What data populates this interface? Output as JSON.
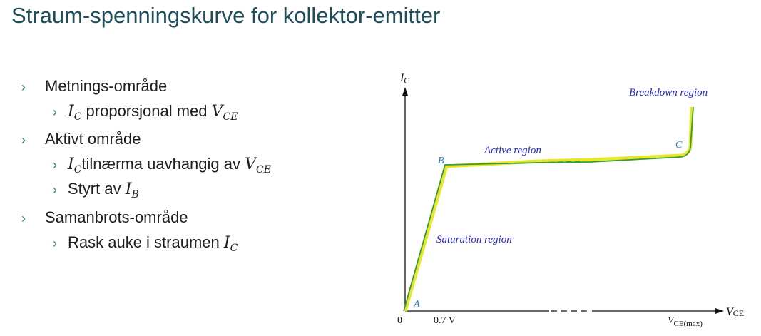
{
  "title": "Straum-spenningskurve for kollektor-emitter",
  "bullets": [
    {
      "level": 1,
      "text": "Metnings-område"
    },
    {
      "level": 2,
      "var": "I",
      "var_sub": "C",
      "text": " proporsjonal med ",
      "var2": "V",
      "var2_sub": "CE"
    },
    {
      "level": 1,
      "text": "Aktivt område"
    },
    {
      "level": 2,
      "var": "I",
      "var_sub": "C",
      "text": "tilnærma uavhangig av ",
      "var2": "V",
      "var2_sub": "CE"
    },
    {
      "level": 2,
      "text": "Styrt av ",
      "var2": "I",
      "var2_sub": "B"
    },
    {
      "level": 1,
      "text": "Samanbrots-område"
    },
    {
      "level": 2,
      "text": "Rask auke i straumen ",
      "var2": "I",
      "var2_sub": "C"
    }
  ],
  "chevron": "›",
  "diagram": {
    "y_axis_label": "I",
    "y_axis_sub": "C",
    "x_axis_label": "V",
    "x_axis_sub": "CE",
    "origin_label": "0",
    "x_tick_label": "0.7 V",
    "x_max_label": "V",
    "x_max_sub": "CE(max)",
    "point_a": "A",
    "point_b": "B",
    "point_c": "C",
    "region_active": "Active region",
    "region_saturation": "Saturation region",
    "region_breakdown": "Breakdown region",
    "colors": {
      "curve": "#3a9a3a",
      "highlight": "#e8e82a",
      "region_text": "#2222cc",
      "point_text": "#2a7fc0"
    }
  }
}
